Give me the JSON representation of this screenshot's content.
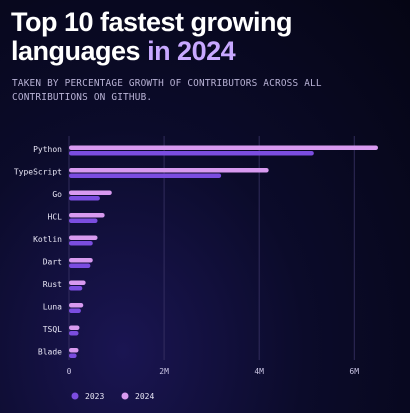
{
  "header": {
    "title_main": "Top 10 fastest growing languages",
    "title_highlight": "in 2024",
    "subtitle": "TAKEN BY PERCENTAGE GROWTH OF CONTRIBUTORS ACROSS ALL CONTRIBUTIONS ON GITHUB."
  },
  "colors": {
    "series_2023": "#7b4de0",
    "series_2024": "#d89af0",
    "grid": "#3a3466",
    "title_highlight": "#c8a8ff"
  },
  "chart_data": {
    "type": "bar",
    "orientation": "horizontal",
    "categories": [
      "Python",
      "TypeScript",
      "Go",
      "HCL",
      "Kotlin",
      "Dart",
      "Rust",
      "Luna",
      "TSQL",
      "Blade"
    ],
    "series": [
      {
        "name": "2023",
        "values": [
          5.15,
          3.2,
          0.65,
          0.6,
          0.5,
          0.45,
          0.28,
          0.25,
          0.2,
          0.16
        ]
      },
      {
        "name": "2024",
        "values": [
          6.5,
          4.2,
          0.9,
          0.75,
          0.6,
          0.5,
          0.35,
          0.3,
          0.22,
          0.2
        ]
      }
    ],
    "xticks": [
      "0",
      "2M",
      "4M",
      "6M"
    ],
    "xlim": [
      0,
      6.5
    ],
    "grid": true,
    "legend": "bottom-left"
  }
}
